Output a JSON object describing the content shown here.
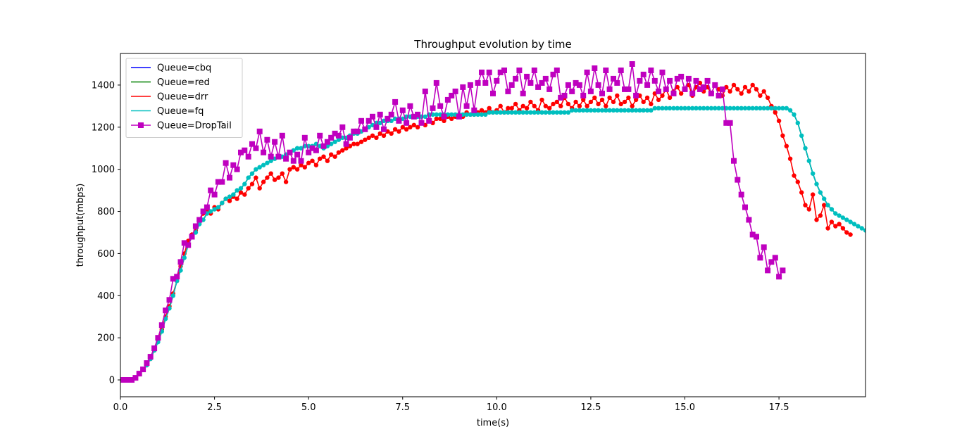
{
  "chart_data": {
    "type": "line",
    "title": "Throughput evolution by time",
    "xlabel": "time(s)",
    "ylabel": "throughput(mbps)",
    "xlim": [
      0,
      19.8
    ],
    "ylim": [
      -80,
      1550
    ],
    "xticks": [
      0,
      2.5,
      5,
      7.5,
      10,
      12.5,
      15,
      17.5
    ],
    "xtick_labels": [
      "0.0",
      "2.5",
      "5.0",
      "7.5",
      "10.0",
      "12.5",
      "15.0",
      "17.5"
    ],
    "yticks": [
      0,
      200,
      400,
      600,
      800,
      1000,
      1200,
      1400
    ],
    "ytick_labels": [
      "0",
      "200",
      "400",
      "600",
      "800",
      "1000",
      "1200",
      "1400"
    ],
    "grid": false,
    "legend_position": "top-left",
    "x_start": 0,
    "x_step": 0.1,
    "series": [
      {
        "name": "Queue=cbq",
        "color": "#0000ff",
        "marker": "none",
        "values": [
          0,
          0,
          0,
          0,
          10,
          30,
          50,
          70,
          100,
          140,
          180,
          230,
          290,
          340,
          400,
          470,
          520,
          580,
          640,
          680,
          700,
          740,
          760,
          790,
          800,
          810,
          820,
          840,
          860,
          870,
          880,
          900,
          910,
          930,
          960,
          980,
          1000,
          1010,
          1020,
          1030,
          1040,
          1050,
          1060,
          1060,
          1070,
          1080,
          1090,
          1100,
          1100,
          1110,
          1110,
          1110,
          1120,
          1110,
          1100,
          1110,
          1120,
          1130,
          1140,
          1150,
          1150,
          1160,
          1170,
          1170,
          1180,
          1190,
          1200,
          1210,
          1220,
          1220,
          1230,
          1230,
          1230,
          1240,
          1240,
          1240,
          1250,
          1250,
          1250,
          1250,
          1250,
          1250,
          1260,
          1260,
          1260,
          1260,
          1260,
          1260,
          1260,
          1260,
          1260,
          1260,
          1260,
          1260,
          1260,
          1260,
          1260,
          1260,
          1270,
          1270,
          1270,
          1270,
          1270,
          1270,
          1270,
          1270,
          1270,
          1270,
          1270,
          1270,
          1270,
          1270,
          1270,
          1270,
          1270,
          1270,
          1270,
          1270,
          1270,
          1270,
          1280,
          1280,
          1280,
          1280,
          1280,
          1280,
          1280,
          1280,
          1280,
          1280,
          1280,
          1280,
          1280,
          1280,
          1280,
          1280,
          1280,
          1280,
          1280,
          1280,
          1280,
          1280,
          1290,
          1290,
          1290,
          1290,
          1290,
          1290,
          1290,
          1290,
          1290,
          1290,
          1290,
          1290,
          1290,
          1290,
          1290,
          1290,
          1290,
          1290,
          1290,
          1290,
          1290,
          1290,
          1290,
          1290,
          1290,
          1290,
          1290,
          1290,
          1290,
          1290,
          1290,
          1290,
          1290,
          1290,
          1290,
          1290,
          1280,
          1260,
          1220,
          1160,
          1100,
          1040,
          980,
          930,
          890,
          860,
          830,
          810,
          790,
          780,
          770,
          760,
          750,
          740,
          730,
          720,
          710,
          700
        ]
      },
      {
        "name": "Queue=red",
        "color": "#008000",
        "marker": "none",
        "values": [
          0,
          0,
          0,
          0,
          10,
          30,
          50,
          70,
          100,
          140,
          180,
          230,
          290,
          340,
          400,
          470,
          520,
          580,
          640,
          680,
          700,
          740,
          760,
          790,
          800,
          810,
          820,
          840,
          860,
          870,
          880,
          900,
          910,
          930,
          960,
          980,
          1000,
          1010,
          1020,
          1030,
          1040,
          1050,
          1060,
          1060,
          1070,
          1080,
          1090,
          1100,
          1100,
          1110,
          1110,
          1110,
          1120,
          1110,
          1100,
          1110,
          1120,
          1130,
          1140,
          1150,
          1150,
          1160,
          1170,
          1170,
          1180,
          1190,
          1200,
          1210,
          1220,
          1220,
          1230,
          1230,
          1230,
          1240,
          1240,
          1240,
          1250,
          1250,
          1250,
          1250,
          1250,
          1250,
          1260,
          1260,
          1260,
          1260,
          1260,
          1260,
          1260,
          1260,
          1260,
          1260,
          1260,
          1260,
          1260,
          1260,
          1260,
          1260,
          1270,
          1270,
          1270,
          1270,
          1270,
          1270,
          1270,
          1270,
          1270,
          1270,
          1270,
          1270,
          1270,
          1270,
          1270,
          1270,
          1270,
          1270,
          1270,
          1270,
          1270,
          1270,
          1280,
          1280,
          1280,
          1280,
          1280,
          1280,
          1280,
          1280,
          1280,
          1280,
          1280,
          1280,
          1280,
          1280,
          1280,
          1280,
          1280,
          1280,
          1280,
          1280,
          1280,
          1280,
          1290,
          1290,
          1290,
          1290,
          1290,
          1290,
          1290,
          1290,
          1290,
          1290,
          1290,
          1290,
          1290,
          1290,
          1290,
          1290,
          1290,
          1290,
          1290,
          1290,
          1290,
          1290,
          1290,
          1290,
          1290,
          1290,
          1290,
          1290,
          1290,
          1290,
          1290,
          1290,
          1290,
          1290,
          1290,
          1290,
          1280,
          1260,
          1220,
          1160,
          1100,
          1040,
          980,
          930,
          890,
          860,
          830,
          810,
          790,
          780,
          770,
          760,
          750,
          740,
          730,
          720,
          710,
          700
        ]
      },
      {
        "name": "Queue=drr",
        "color": "#ff0000",
        "marker": "circle",
        "values": [
          0,
          0,
          0,
          0,
          10,
          30,
          50,
          70,
          100,
          140,
          190,
          240,
          300,
          350,
          410,
          470,
          540,
          600,
          660,
          690,
          710,
          760,
          790,
          800,
          790,
          820,
          810,
          840,
          860,
          850,
          870,
          860,
          890,
          880,
          910,
          930,
          960,
          910,
          940,
          960,
          980,
          950,
          960,
          980,
          940,
          1000,
          1010,
          1000,
          1020,
          1010,
          1030,
          1040,
          1020,
          1050,
          1060,
          1040,
          1070,
          1060,
          1080,
          1090,
          1100,
          1110,
          1120,
          1120,
          1130,
          1140,
          1150,
          1160,
          1150,
          1170,
          1160,
          1180,
          1170,
          1190,
          1180,
          1200,
          1190,
          1200,
          1210,
          1200,
          1220,
          1210,
          1230,
          1220,
          1240,
          1240,
          1230,
          1250,
          1240,
          1250,
          1260,
          1250,
          1270,
          1260,
          1260,
          1270,
          1280,
          1270,
          1290,
          1270,
          1280,
          1300,
          1270,
          1290,
          1290,
          1310,
          1280,
          1300,
          1290,
          1320,
          1300,
          1280,
          1330,
          1300,
          1290,
          1310,
          1320,
          1300,
          1340,
          1310,
          1290,
          1320,
          1300,
          1330,
          1300,
          1320,
          1340,
          1310,
          1330,
          1300,
          1340,
          1320,
          1350,
          1310,
          1320,
          1340,
          1300,
          1330,
          1350,
          1320,
          1340,
          1310,
          1360,
          1330,
          1350,
          1380,
          1340,
          1370,
          1390,
          1360,
          1380,
          1400,
          1350,
          1390,
          1410,
          1370,
          1390,
          1360,
          1400,
          1380,
          1350,
          1390,
          1370,
          1400,
          1380,
          1360,
          1390,
          1370,
          1400,
          1380,
          1350,
          1370,
          1340,
          1300,
          1270,
          1230,
          1160,
          1110,
          1050,
          970,
          940,
          890,
          830,
          810,
          880,
          760,
          780,
          830,
          720,
          750,
          730,
          740,
          720,
          700,
          690
        ]
      },
      {
        "name": "Queue=fq",
        "color": "#00bfbf",
        "marker": "circle",
        "values": [
          0,
          0,
          0,
          0,
          10,
          30,
          50,
          70,
          100,
          140,
          180,
          230,
          290,
          340,
          400,
          470,
          520,
          580,
          640,
          680,
          700,
          740,
          760,
          790,
          800,
          810,
          820,
          840,
          860,
          870,
          880,
          900,
          910,
          930,
          960,
          980,
          1000,
          1010,
          1020,
          1030,
          1040,
          1050,
          1060,
          1060,
          1070,
          1080,
          1090,
          1100,
          1100,
          1110,
          1110,
          1110,
          1120,
          1110,
          1100,
          1110,
          1120,
          1130,
          1140,
          1150,
          1150,
          1160,
          1170,
          1170,
          1180,
          1190,
          1200,
          1210,
          1220,
          1220,
          1230,
          1230,
          1230,
          1240,
          1240,
          1240,
          1250,
          1250,
          1250,
          1250,
          1250,
          1250,
          1260,
          1260,
          1260,
          1260,
          1260,
          1260,
          1260,
          1260,
          1260,
          1260,
          1260,
          1260,
          1260,
          1260,
          1260,
          1260,
          1270,
          1270,
          1270,
          1270,
          1270,
          1270,
          1270,
          1270,
          1270,
          1270,
          1270,
          1270,
          1270,
          1270,
          1270,
          1270,
          1270,
          1270,
          1270,
          1270,
          1270,
          1270,
          1280,
          1280,
          1280,
          1280,
          1280,
          1280,
          1280,
          1280,
          1280,
          1280,
          1280,
          1280,
          1280,
          1280,
          1280,
          1280,
          1280,
          1280,
          1280,
          1280,
          1280,
          1280,
          1290,
          1290,
          1290,
          1290,
          1290,
          1290,
          1290,
          1290,
          1290,
          1290,
          1290,
          1290,
          1290,
          1290,
          1290,
          1290,
          1290,
          1290,
          1290,
          1290,
          1290,
          1290,
          1290,
          1290,
          1290,
          1290,
          1290,
          1290,
          1290,
          1290,
          1290,
          1290,
          1290,
          1290,
          1290,
          1290,
          1280,
          1260,
          1220,
          1160,
          1100,
          1040,
          980,
          930,
          890,
          860,
          830,
          810,
          790,
          780,
          770,
          760,
          750,
          740,
          730,
          720,
          710,
          700
        ]
      },
      {
        "name": "Queue=DropTail",
        "color": "#bf00bf",
        "marker": "square",
        "values": [
          0,
          0,
          0,
          0,
          10,
          30,
          50,
          80,
          110,
          150,
          200,
          260,
          330,
          380,
          480,
          490,
          560,
          650,
          640,
          680,
          730,
          760,
          800,
          820,
          900,
          880,
          940,
          940,
          1030,
          960,
          1020,
          1000,
          1080,
          1090,
          1060,
          1120,
          1100,
          1180,
          1080,
          1140,
          1060,
          1130,
          1060,
          1160,
          1050,
          1080,
          1040,
          1070,
          1040,
          1150,
          1080,
          1100,
          1090,
          1160,
          1110,
          1130,
          1150,
          1170,
          1160,
          1200,
          1120,
          1150,
          1180,
          1180,
          1230,
          1190,
          1230,
          1250,
          1200,
          1260,
          1190,
          1240,
          1260,
          1320,
          1230,
          1280,
          1220,
          1300,
          1250,
          1260,
          1220,
          1370,
          1230,
          1290,
          1410,
          1300,
          1250,
          1330,
          1350,
          1370,
          1250,
          1390,
          1300,
          1400,
          1280,
          1410,
          1460,
          1410,
          1460,
          1360,
          1420,
          1460,
          1470,
          1370,
          1400,
          1430,
          1470,
          1360,
          1440,
          1410,
          1470,
          1390,
          1410,
          1430,
          1380,
          1450,
          1470,
          1340,
          1350,
          1400,
          1370,
          1410,
          1400,
          1350,
          1460,
          1370,
          1480,
          1400,
          1360,
          1470,
          1380,
          1430,
          1410,
          1470,
          1380,
          1380,
          1500,
          1350,
          1420,
          1450,
          1400,
          1470,
          1420,
          1370,
          1460,
          1380,
          1420,
          1360,
          1430,
          1440,
          1380,
          1430,
          1360,
          1420,
          1380,
          1390,
          1420,
          1360,
          1400,
          1350,
          1380,
          1220,
          1220,
          1040,
          950,
          880,
          820,
          760,
          690,
          680,
          580,
          630,
          520,
          560,
          580,
          490,
          520
        ]
      }
    ]
  }
}
